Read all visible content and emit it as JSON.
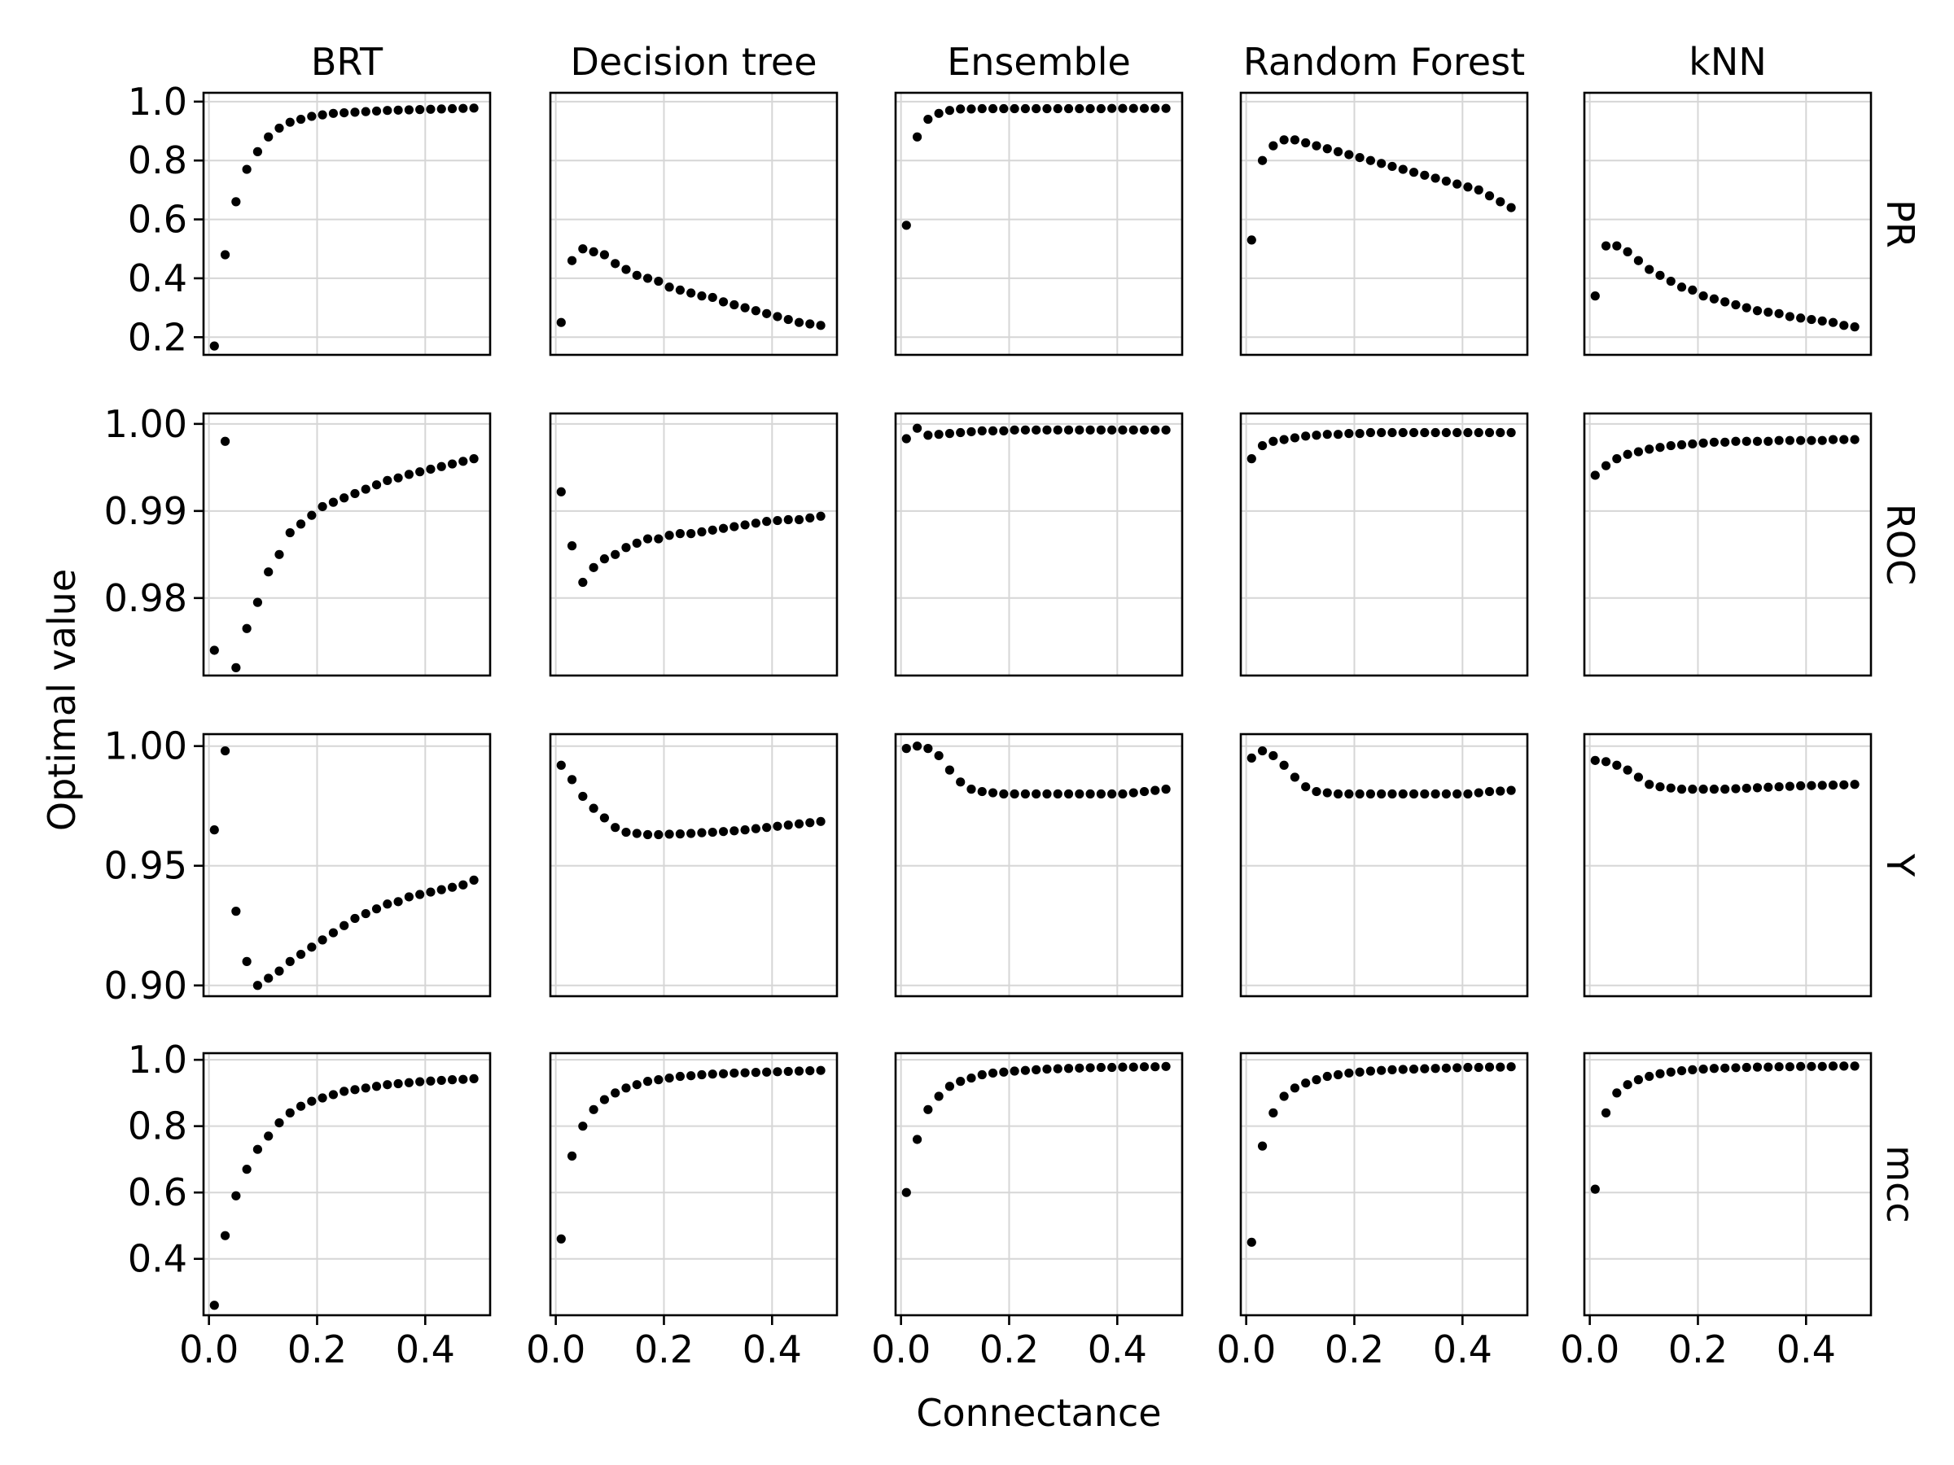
{
  "chart_data": {
    "type": "scatter",
    "x_label": "Connectance",
    "y_label": "Optimal value",
    "columns": [
      "BRT",
      "Decision tree",
      "Ensemble",
      "Random Forest",
      "kNN"
    ],
    "rows": [
      "PR",
      "ROC",
      "Y",
      "mcc"
    ],
    "x_ticks": [
      "0.0",
      "0.2",
      "0.4"
    ],
    "x_tick_values": [
      0.0,
      0.2,
      0.4
    ],
    "x_range": [
      -0.01,
      0.52
    ],
    "x": [
      0.01,
      0.03,
      0.05,
      0.07,
      0.09,
      0.11,
      0.13,
      0.15,
      0.17,
      0.19,
      0.21,
      0.23,
      0.25,
      0.27,
      0.29,
      0.31,
      0.33,
      0.35,
      0.37,
      0.39,
      0.41,
      0.43,
      0.45,
      0.47,
      0.49
    ],
    "grid": true,
    "panel_rows": [
      {
        "name": "PR",
        "ylim": [
          0.14,
          1.03
        ],
        "y_ticks": [
          "1.0",
          "0.8",
          "0.6",
          "0.4",
          "0.2"
        ],
        "y_tick_values": [
          1.0,
          0.8,
          0.6,
          0.4,
          0.2
        ],
        "series": [
          {
            "values": [
              0.17,
              0.48,
              0.66,
              0.77,
              0.83,
              0.88,
              0.91,
              0.93,
              0.94,
              0.95,
              0.955,
              0.96,
              0.962,
              0.964,
              0.966,
              0.968,
              0.97,
              0.971,
              0.972,
              0.973,
              0.974,
              0.975,
              0.976,
              0.977,
              0.978
            ]
          },
          {
            "values": [
              0.25,
              0.46,
              0.5,
              0.49,
              0.48,
              0.45,
              0.43,
              0.41,
              0.4,
              0.39,
              0.37,
              0.36,
              0.35,
              0.34,
              0.335,
              0.32,
              0.31,
              0.3,
              0.29,
              0.28,
              0.27,
              0.26,
              0.25,
              0.245,
              0.24
            ]
          },
          {
            "values": [
              0.58,
              0.88,
              0.94,
              0.96,
              0.97,
              0.975,
              0.975,
              0.976,
              0.976,
              0.976,
              0.976,
              0.976,
              0.976,
              0.976,
              0.976,
              0.976,
              0.976,
              0.976,
              0.976,
              0.977,
              0.977,
              0.977,
              0.977,
              0.977,
              0.977
            ]
          },
          {
            "values": [
              0.53,
              0.8,
              0.85,
              0.87,
              0.87,
              0.86,
              0.85,
              0.84,
              0.83,
              0.82,
              0.81,
              0.8,
              0.79,
              0.78,
              0.77,
              0.76,
              0.75,
              0.74,
              0.73,
              0.72,
              0.71,
              0.7,
              0.68,
              0.66,
              0.64
            ]
          },
          {
            "values": [
              0.34,
              0.51,
              0.51,
              0.49,
              0.46,
              0.43,
              0.41,
              0.39,
              0.37,
              0.36,
              0.34,
              0.33,
              0.32,
              0.31,
              0.3,
              0.29,
              0.285,
              0.28,
              0.27,
              0.265,
              0.26,
              0.255,
              0.25,
              0.24,
              0.235
            ]
          }
        ]
      },
      {
        "name": "ROC",
        "ylim": [
          0.9711,
          1.0012
        ],
        "y_ticks": [
          "1.00",
          "0.99",
          "0.98"
        ],
        "y_tick_values": [
          1.0,
          0.99,
          0.98
        ],
        "series": [
          {
            "values": [
              0.974,
              0.998,
              0.972,
              0.9765,
              0.9795,
              0.983,
              0.985,
              0.9875,
              0.9885,
              0.9895,
              0.9905,
              0.991,
              0.9915,
              0.992,
              0.9925,
              0.993,
              0.9935,
              0.9938,
              0.9942,
              0.9945,
              0.9948,
              0.9951,
              0.9954,
              0.9957,
              0.996
            ]
          },
          {
            "values": [
              0.9922,
              0.986,
              0.9818,
              0.9835,
              0.9845,
              0.985,
              0.9858,
              0.9863,
              0.9868,
              0.9868,
              0.9872,
              0.9874,
              0.9874,
              0.9876,
              0.9878,
              0.988,
              0.9882,
              0.9884,
              0.9886,
              0.9888,
              0.9889,
              0.989,
              0.989,
              0.9892,
              0.9894
            ]
          },
          {
            "values": [
              0.9983,
              0.9995,
              0.9987,
              0.9988,
              0.9989,
              0.999,
              0.9991,
              0.9992,
              0.9992,
              0.9992,
              0.9993,
              0.9993,
              0.9993,
              0.9993,
              0.9993,
              0.9993,
              0.9993,
              0.9993,
              0.9993,
              0.9993,
              0.9993,
              0.9993,
              0.9993,
              0.9993,
              0.9993
            ]
          },
          {
            "values": [
              0.996,
              0.9975,
              0.998,
              0.9982,
              0.9984,
              0.9986,
              0.9987,
              0.9988,
              0.9988,
              0.9989,
              0.9989,
              0.999,
              0.999,
              0.999,
              0.999,
              0.999,
              0.999,
              0.999,
              0.999,
              0.999,
              0.999,
              0.999,
              0.999,
              0.999,
              0.999
            ]
          },
          {
            "values": [
              0.9941,
              0.9952,
              0.996,
              0.9965,
              0.9968,
              0.9971,
              0.9973,
              0.9975,
              0.9976,
              0.9977,
              0.9978,
              0.9979,
              0.9979,
              0.998,
              0.998,
              0.998,
              0.998,
              0.9981,
              0.9981,
              0.9981,
              0.9981,
              0.9981,
              0.9982,
              0.9982,
              0.9982
            ]
          }
        ]
      },
      {
        "name": "Y",
        "ylim": [
          0.8955,
          1.005
        ],
        "y_ticks": [
          "1.00",
          "0.95",
          "0.90"
        ],
        "y_tick_values": [
          1.0,
          0.95,
          0.9
        ],
        "series": [
          {
            "values": [
              0.965,
              0.998,
              0.931,
              0.91,
              0.9,
              0.903,
              0.906,
              0.91,
              0.913,
              0.916,
              0.919,
              0.922,
              0.925,
              0.928,
              0.93,
              0.932,
              0.934,
              0.935,
              0.937,
              0.938,
              0.939,
              0.94,
              0.941,
              0.942,
              0.944
            ]
          },
          {
            "values": [
              0.992,
              0.986,
              0.979,
              0.974,
              0.97,
              0.966,
              0.964,
              0.9635,
              0.963,
              0.963,
              0.9632,
              0.9633,
              0.9635,
              0.9638,
              0.964,
              0.9643,
              0.9646,
              0.965,
              0.9655,
              0.966,
              0.9665,
              0.967,
              0.9675,
              0.968,
              0.9685
            ]
          },
          {
            "values": [
              0.999,
              1.0,
              0.999,
              0.996,
              0.99,
              0.985,
              0.982,
              0.981,
              0.9805,
              0.98,
              0.98,
              0.98,
              0.98,
              0.98,
              0.98,
              0.98,
              0.98,
              0.98,
              0.98,
              0.98,
              0.98,
              0.9805,
              0.981,
              0.9815,
              0.982
            ]
          },
          {
            "values": [
              0.995,
              0.998,
              0.996,
              0.992,
              0.987,
              0.983,
              0.981,
              0.9805,
              0.98,
              0.98,
              0.98,
              0.98,
              0.98,
              0.98,
              0.98,
              0.98,
              0.98,
              0.98,
              0.98,
              0.98,
              0.98,
              0.9805,
              0.981,
              0.9812,
              0.9815
            ]
          },
          {
            "values": [
              0.994,
              0.9935,
              0.992,
              0.99,
              0.987,
              0.984,
              0.983,
              0.9825,
              0.982,
              0.982,
              0.982,
              0.982,
              0.982,
              0.9822,
              0.9824,
              0.9826,
              0.9828,
              0.983,
              0.9832,
              0.9834,
              0.9835,
              0.9836,
              0.9837,
              0.9838,
              0.984
            ]
          }
        ]
      },
      {
        "name": "mcc",
        "ylim": [
          0.23,
          1.02
        ],
        "y_ticks": [
          "1.0",
          "0.8",
          "0.6",
          "0.4"
        ],
        "y_tick_values": [
          1.0,
          0.8,
          0.6,
          0.4
        ],
        "series": [
          {
            "values": [
              0.26,
              0.47,
              0.59,
              0.67,
              0.73,
              0.77,
              0.81,
              0.84,
              0.86,
              0.875,
              0.885,
              0.895,
              0.905,
              0.91,
              0.915,
              0.92,
              0.925,
              0.928,
              0.931,
              0.934,
              0.936,
              0.938,
              0.94,
              0.941,
              0.943
            ]
          },
          {
            "values": [
              0.46,
              0.71,
              0.8,
              0.85,
              0.88,
              0.9,
              0.915,
              0.925,
              0.935,
              0.94,
              0.945,
              0.95,
              0.952,
              0.955,
              0.957,
              0.958,
              0.96,
              0.961,
              0.962,
              0.963,
              0.964,
              0.965,
              0.966,
              0.967,
              0.968
            ]
          },
          {
            "values": [
              0.6,
              0.76,
              0.85,
              0.89,
              0.92,
              0.935,
              0.945,
              0.955,
              0.96,
              0.963,
              0.966,
              0.968,
              0.97,
              0.972,
              0.973,
              0.974,
              0.975,
              0.976,
              0.977,
              0.977,
              0.978,
              0.978,
              0.979,
              0.979,
              0.98
            ]
          },
          {
            "values": [
              0.45,
              0.74,
              0.84,
              0.89,
              0.915,
              0.93,
              0.94,
              0.95,
              0.955,
              0.96,
              0.963,
              0.966,
              0.968,
              0.97,
              0.971,
              0.972,
              0.973,
              0.974,
              0.975,
              0.976,
              0.977,
              0.977,
              0.978,
              0.978,
              0.979
            ]
          },
          {
            "values": [
              0.61,
              0.84,
              0.9,
              0.925,
              0.94,
              0.95,
              0.958,
              0.963,
              0.967,
              0.97,
              0.972,
              0.974,
              0.975,
              0.976,
              0.977,
              0.978,
              0.978,
              0.979,
              0.979,
              0.98,
              0.98,
              0.98,
              0.981,
              0.981,
              0.981
            ]
          }
        ]
      }
    ]
  }
}
